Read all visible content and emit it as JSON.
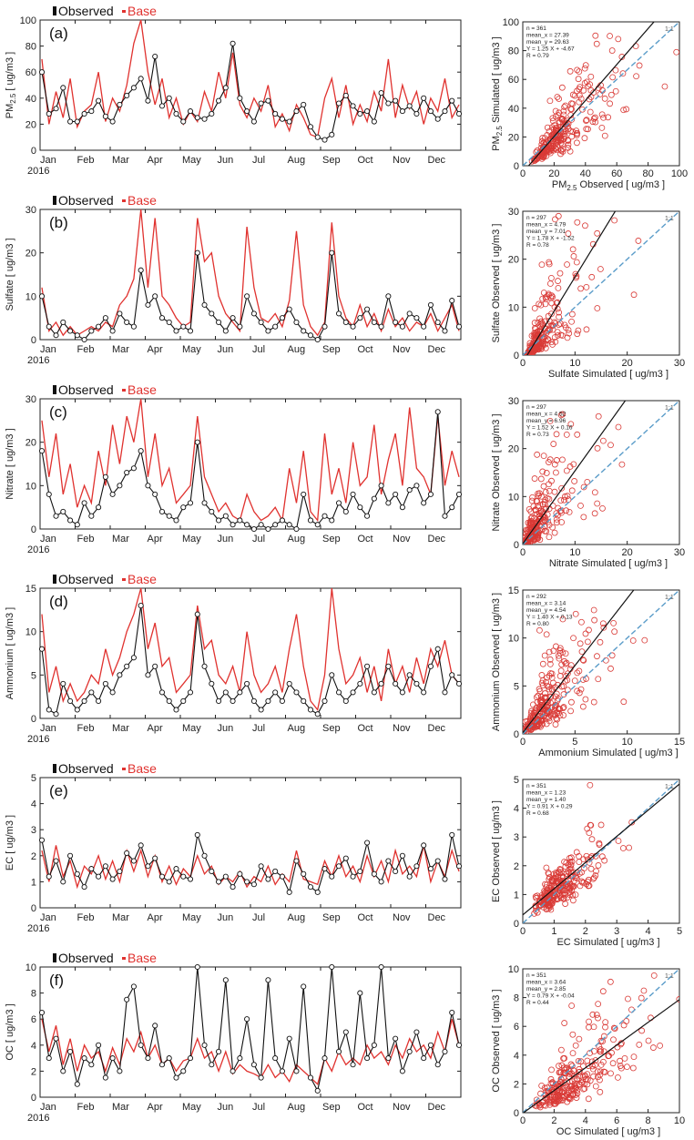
{
  "legend": {
    "observed": "Observed",
    "base": "Base"
  },
  "colors": {
    "observed": "#111111",
    "base": "#e0322f",
    "scatter": "#d93a36",
    "fit": "#111111",
    "oneToOne": "#5a9cc9"
  },
  "months": [
    "Jan",
    "Feb",
    "Mar",
    "Apr",
    "May",
    "Jun",
    "Jul",
    "Aug",
    "Sep",
    "Oct",
    "Nov",
    "Dec"
  ],
  "year": "2016",
  "chart_data": [
    {
      "id": "a",
      "panel": "(a)",
      "type": "line",
      "ylabel": "PM2.5 [ ug/m3 ]",
      "ylim": [
        0,
        100
      ],
      "yticks": [
        0,
        20,
        40,
        60,
        80,
        100
      ],
      "series": [
        {
          "name": "Observed",
          "y": [
            60,
            28,
            32,
            48,
            22,
            22,
            28,
            30,
            38,
            26,
            22,
            35,
            42,
            48,
            55,
            38,
            72,
            34,
            40,
            28,
            22,
            30,
            25,
            24,
            28,
            38,
            48,
            82,
            40,
            30,
            22,
            36,
            38,
            28,
            24,
            22,
            30,
            35,
            18,
            10,
            8,
            12,
            36,
            42,
            34,
            28,
            30,
            22,
            44,
            36,
            38,
            30,
            34,
            28,
            40,
            30,
            24,
            30,
            38,
            28
          ]
        },
        {
          "name": "Base",
          "y": [
            70,
            20,
            45,
            25,
            55,
            18,
            30,
            35,
            60,
            22,
            40,
            30,
            50,
            82,
            100,
            60,
            35,
            55,
            25,
            40,
            20,
            30,
            22,
            45,
            30,
            60,
            40,
            75,
            35,
            25,
            40,
            30,
            50,
            18,
            28,
            15,
            35,
            25,
            12,
            10,
            40,
            55,
            25,
            50,
            20,
            35,
            22,
            45,
            30,
            70,
            25,
            50,
            32,
            45,
            20,
            40,
            30,
            55,
            25,
            35
          ]
        }
      ],
      "scatter": {
        "xlabel": "PM2.5 Observed [ ug/m3 ]",
        "ylabel": "PM2.5 Simulated [ ug/m3 ]",
        "lim": [
          0,
          100
        ],
        "ticks": [
          0,
          20,
          40,
          60,
          80,
          100
        ],
        "stats": [
          "n = 361",
          "mean_x = 27.39",
          "mean_y = 29.63",
          "Y = 1.25 X + -4.67",
          "R = 0.79"
        ],
        "fit": {
          "slope": 1.25,
          "intercept": -4.67
        },
        "mean": [
          27.39,
          29.63
        ],
        "spread": [
          0.55,
          0.45
        ],
        "n": 361
      }
    },
    {
      "id": "b",
      "panel": "(b)",
      "type": "line",
      "ylabel": "Sulfate [ ug/m3 ]",
      "ylim": [
        0,
        30
      ],
      "yticks": [
        0,
        10,
        20,
        30
      ],
      "series": [
        {
          "name": "Observed",
          "y": [
            10,
            3,
            1,
            4,
            2,
            1,
            0,
            2,
            3,
            5,
            2,
            6,
            4,
            3,
            16,
            8,
            10,
            5,
            4,
            2,
            3,
            2,
            20,
            8,
            6,
            4,
            2,
            5,
            3,
            10,
            6,
            4,
            2,
            3,
            5,
            7,
            4,
            2,
            1,
            0,
            3,
            20,
            6,
            4,
            3,
            5,
            7,
            4,
            3,
            10,
            4,
            3,
            6,
            5,
            3,
            8,
            4,
            2,
            9,
            3
          ]
        },
        {
          "name": "Base",
          "y": [
            12,
            2,
            4,
            1,
            3,
            1,
            2,
            3,
            2,
            4,
            3,
            8,
            10,
            14,
            30,
            12,
            28,
            10,
            8,
            5,
            3,
            4,
            28,
            18,
            20,
            10,
            6,
            4,
            2,
            26,
            12,
            5,
            4,
            6,
            3,
            9,
            25,
            8,
            3,
            1,
            4,
            27,
            10,
            5,
            3,
            8,
            3,
            6,
            2,
            7,
            3,
            5,
            2,
            4,
            3,
            6,
            2,
            5,
            8,
            2
          ]
        }
      ],
      "scatter": {
        "xlabel": "Sulfate Simulated [ ug/m3 ]",
        "ylabel": "Sulfate Observed [ ug/m3 ]",
        "lim": [
          0,
          30
        ],
        "ticks": [
          0,
          10,
          20,
          30
        ],
        "stats": [
          "n = 297",
          "mean_x = 4.79",
          "mean_y = 7.01",
          "Y = 1.78 X + -1.52",
          "R = 0.78"
        ],
        "fit": {
          "slope": 1.78,
          "intercept": -1.52
        },
        "mean": [
          4.79,
          7.01
        ],
        "spread": [
          0.85,
          0.8
        ],
        "n": 297
      }
    },
    {
      "id": "c",
      "panel": "(c)",
      "type": "line",
      "ylabel": "Nitrate [ ug/m3 ]",
      "ylim": [
        0,
        30
      ],
      "yticks": [
        0,
        10,
        20,
        30
      ],
      "series": [
        {
          "name": "Observed",
          "y": [
            18,
            8,
            3,
            4,
            2,
            1,
            6,
            3,
            5,
            12,
            8,
            10,
            13,
            14,
            18,
            10,
            8,
            4,
            3,
            2,
            5,
            6,
            20,
            6,
            4,
            2,
            3,
            1,
            2,
            1,
            0,
            1,
            0,
            1,
            2,
            1,
            0,
            8,
            2,
            1,
            3,
            2,
            6,
            4,
            8,
            5,
            3,
            7,
            10,
            6,
            8,
            5,
            9,
            10,
            6,
            8,
            27,
            3,
            5,
            8
          ]
        },
        {
          "name": "Base",
          "y": [
            25,
            12,
            22,
            8,
            15,
            5,
            10,
            6,
            18,
            10,
            24,
            15,
            26,
            20,
            30,
            12,
            22,
            10,
            14,
            6,
            8,
            10,
            26,
            12,
            8,
            4,
            6,
            3,
            2,
            8,
            4,
            2,
            3,
            5,
            2,
            14,
            6,
            18,
            4,
            2,
            22,
            8,
            14,
            6,
            20,
            10,
            12,
            24,
            8,
            16,
            22,
            10,
            28,
            14,
            12,
            8,
            26,
            10,
            18,
            12
          ]
        }
      ],
      "scatter": {
        "xlabel": "Nitrate Simulated [ ug/m3 ]",
        "ylabel": "Nitrate Observed [ ug/m3 ]",
        "lim": [
          0,
          30
        ],
        "ticks": [
          0,
          10,
          20,
          30
        ],
        "stats": [
          "n = 297",
          "mean_x = 4.52",
          "mean_y = 6.96",
          "Y = 1.52 X + 0.16",
          "R = 0.73"
        ],
        "fit": {
          "slope": 1.52,
          "intercept": 0.16
        },
        "mean": [
          4.52,
          6.96
        ],
        "spread": [
          0.9,
          0.85
        ],
        "n": 297
      }
    },
    {
      "id": "d",
      "panel": "(d)",
      "type": "line",
      "ylabel": "Ammonium [ ug/m3 ]",
      "ylim": [
        0,
        15
      ],
      "yticks": [
        0,
        5,
        10,
        15
      ],
      "series": [
        {
          "name": "Observed",
          "y": [
            8,
            1,
            0.5,
            4,
            2,
            1,
            2,
            3,
            2,
            4,
            3,
            5,
            6,
            7,
            13,
            5,
            6,
            3,
            2,
            1,
            2,
            3,
            12,
            6,
            4,
            2,
            3,
            2,
            3,
            4,
            2,
            1,
            2,
            3,
            2,
            4,
            3,
            2,
            1,
            0.5,
            2,
            5,
            3,
            2,
            3,
            4,
            6,
            3,
            4,
            6,
            4,
            3,
            5,
            4,
            3,
            6,
            8,
            3,
            5,
            4
          ]
        },
        {
          "name": "Base",
          "y": [
            12,
            3,
            6,
            2,
            4,
            2,
            3,
            5,
            4,
            8,
            5,
            7,
            10,
            12,
            15,
            8,
            11,
            6,
            7,
            3,
            4,
            5,
            13,
            8,
            9,
            5,
            4,
            6,
            3,
            10,
            5,
            3,
            4,
            6,
            3,
            8,
            12,
            6,
            2,
            1,
            5,
            15,
            8,
            4,
            5,
            7,
            3,
            6,
            2,
            8,
            4,
            6,
            3,
            7,
            4,
            8,
            6,
            9,
            5,
            4
          ]
        }
      ],
      "scatter": {
        "xlabel": "Ammonium Simulated [ ug/m3 ]",
        "ylabel": "Ammonium Observed [ ug/m3 ]",
        "lim": [
          0,
          15
        ],
        "ticks": [
          0,
          5,
          10,
          15
        ],
        "stats": [
          "n = 292",
          "mean_x = 3.14",
          "mean_y = 4.54",
          "Y = 1.40 X + 0.13",
          "R = 0.80"
        ],
        "fit": {
          "slope": 1.4,
          "intercept": 0.13
        },
        "mean": [
          3.14,
          4.54
        ],
        "spread": [
          0.75,
          0.7
        ],
        "n": 292
      }
    },
    {
      "id": "e",
      "panel": "(e)",
      "type": "line",
      "ylabel": "EC [ ug/m3 ]",
      "ylim": [
        0,
        5
      ],
      "yticks": [
        0,
        1,
        2,
        3,
        4,
        5
      ],
      "series": [
        {
          "name": "Observed",
          "y": [
            2.6,
            1.2,
            1.8,
            1.0,
            2.0,
            1.3,
            0.8,
            1.5,
            1.2,
            1.6,
            1.1,
            1.4,
            2.1,
            1.8,
            2.4,
            1.6,
            1.9,
            1.2,
            1.0,
            1.5,
            1.2,
            1.1,
            2.8,
            2.0,
            1.4,
            1.0,
            1.2,
            0.8,
            1.3,
            1.0,
            0.9,
            1.6,
            1.1,
            1.4,
            1.2,
            0.6,
            1.8,
            1.3,
            0.8,
            0.6,
            1.5,
            1.2,
            1.6,
            1.9,
            1.2,
            1.4,
            2.5,
            1.3,
            1.0,
            1.8,
            1.4,
            2.0,
            1.2,
            1.6,
            2.4,
            1.5,
            1.8,
            1.1,
            2.8,
            1.6
          ]
        },
        {
          "name": "Base",
          "y": [
            2.2,
            1.0,
            2.4,
            1.2,
            1.8,
            0.8,
            1.6,
            1.3,
            2.0,
            1.1,
            1.8,
            1.0,
            2.2,
            1.4,
            2.2,
            1.2,
            2.0,
            1.0,
            1.6,
            0.9,
            1.5,
            1.2,
            2.0,
            1.3,
            1.6,
            0.9,
            1.2,
            1.0,
            1.4,
            0.8,
            1.2,
            1.0,
            1.6,
            0.9,
            1.3,
            1.0,
            2.2,
            1.1,
            1.0,
            0.9,
            1.8,
            1.2,
            2.0,
            1.2,
            1.6,
            1.0,
            2.0,
            1.2,
            1.8,
            1.0,
            2.2,
            1.3,
            1.6,
            1.2,
            2.4,
            1.0,
            1.8,
            1.2,
            2.2,
            1.4
          ]
        }
      ],
      "scatter": {
        "xlabel": "EC Simulated [ ug/m3 ]",
        "ylabel": "EC Observed [ ug/m3 ]",
        "lim": [
          0,
          5
        ],
        "ticks": [
          0,
          1,
          2,
          3,
          4,
          5
        ],
        "stats": [
          "n = 351",
          "mean_x = 1.23",
          "mean_y = 1.40",
          "Y = 0.91 X + 0.29",
          "R = 0.68"
        ],
        "fit": {
          "slope": 0.91,
          "intercept": 0.29
        },
        "mean": [
          1.23,
          1.4
        ],
        "spread": [
          0.45,
          0.35
        ],
        "n": 351
      }
    },
    {
      "id": "f",
      "panel": "(f)",
      "type": "line",
      "ylabel": "OC [ ug/m3 ]",
      "ylim": [
        0,
        10
      ],
      "yticks": [
        0,
        2,
        4,
        6,
        8,
        10
      ],
      "series": [
        {
          "name": "Observed",
          "y": [
            6.5,
            3.0,
            4.5,
            2.0,
            3.5,
            1.0,
            3.0,
            2.5,
            4.0,
            1.5,
            3.0,
            2.0,
            7.5,
            8.5,
            4.0,
            3.0,
            5.5,
            2.5,
            3.0,
            1.5,
            2.0,
            3.0,
            10,
            4.0,
            2.5,
            3.5,
            9.0,
            2.0,
            3.0,
            6.0,
            2.5,
            1.5,
            9.0,
            3.0,
            2.0,
            4.5,
            2.0,
            8.5,
            1.5,
            0.5,
            3.0,
            10,
            3.5,
            5.0,
            2.5,
            8.0,
            3.0,
            4.0,
            10,
            3.0,
            4.5,
            2.0,
            3.5,
            5.0,
            3.0,
            4.0,
            2.5,
            3.5,
            6.5,
            4.0
          ]
        },
        {
          "name": "Base",
          "y": [
            6.0,
            3.5,
            5.5,
            2.5,
            4.5,
            2.0,
            4.0,
            3.0,
            3.5,
            2.0,
            3.8,
            2.5,
            4.5,
            3.5,
            5.0,
            3.0,
            4.0,
            2.5,
            3.0,
            2.0,
            2.8,
            3.0,
            4.5,
            3.0,
            3.5,
            2.0,
            3.5,
            1.8,
            2.5,
            2.0,
            1.8,
            1.5,
            2.5,
            1.5,
            2.0,
            1.2,
            2.5,
            2.0,
            1.5,
            1.0,
            3.0,
            2.0,
            3.5,
            2.5,
            3.0,
            2.5,
            4.0,
            3.0,
            3.5,
            2.5,
            4.0,
            3.0,
            4.5,
            3.5,
            4.0,
            3.0,
            5.0,
            3.5,
            6.0,
            4.0
          ]
        }
      ],
      "scatter": {
        "xlabel": "OC Simulated [ ug/m3 ]",
        "ylabel": "OC Observed [ ug/m3 ]",
        "lim": [
          0,
          10
        ],
        "ticks": [
          0,
          2,
          4,
          6,
          8,
          10
        ],
        "stats": [
          "n = 351",
          "mean_x = 3.64",
          "mean_y = 2.85",
          "Y = 0.79 X + -0.04",
          "R = 0.44"
        ],
        "fit": {
          "slope": 0.79,
          "intercept": -0.04
        },
        "mean": [
          3.64,
          2.85
        ],
        "spread": [
          0.5,
          0.55
        ],
        "n": 351
      }
    }
  ]
}
